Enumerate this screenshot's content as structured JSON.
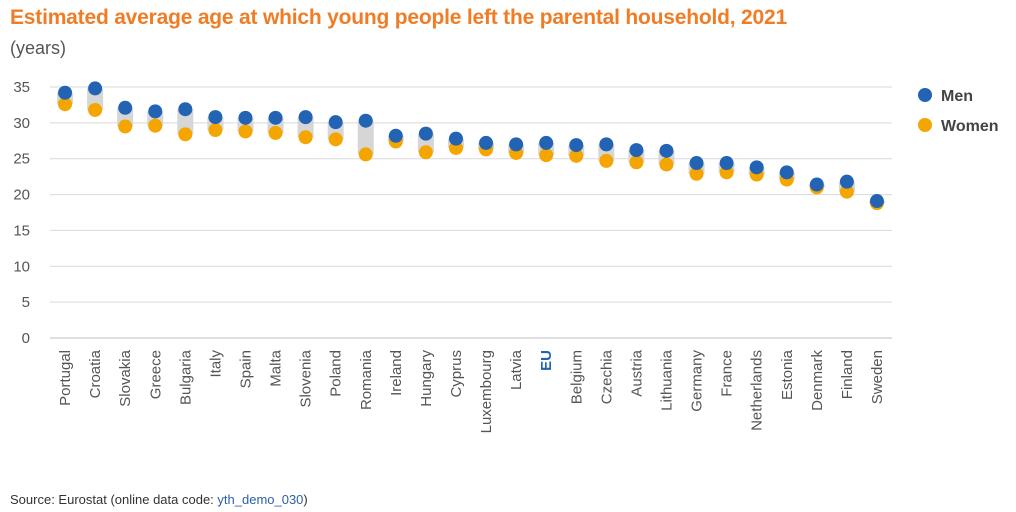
{
  "title": "Estimated average age at which young people left the parental household, 2021",
  "subtitle": "(years)",
  "source": {
    "prefix": "Source: Eurostat (online data code: ",
    "code": "yth_demo_030",
    "suffix": ")"
  },
  "colors": {
    "men": "#2263b4",
    "women": "#f5a500",
    "highlight_label": "#2263b4",
    "range_bar": "#d6d6d6",
    "grid": "#d9d9d9"
  },
  "chart_data": {
    "type": "scatter",
    "title": "Estimated average age at which young people left the parental household, 2021",
    "subtitle": "(years)",
    "xlabel": "",
    "ylabel": "",
    "ylim": [
      0,
      35
    ],
    "yticks": [
      0,
      5,
      10,
      15,
      20,
      25,
      30,
      35
    ],
    "grid": true,
    "legend_position": "right",
    "highlight_category": "EU",
    "categories": [
      "Portugal",
      "Croatia",
      "Slovakia",
      "Greece",
      "Bulgaria",
      "Italy",
      "Spain",
      "Malta",
      "Slovenia",
      "Poland",
      "Romania",
      "Ireland",
      "Hungary",
      "Cyprus",
      "Luxembourg",
      "Latvia",
      "EU",
      "Belgium",
      "Czechia",
      "Austria",
      "Lithuania",
      "Germany",
      "France",
      "Netherlands",
      "Estonia",
      "Denmark",
      "Finland",
      "Sweden"
    ],
    "series": [
      {
        "name": "Men",
        "values": [
          34.2,
          34.8,
          32.1,
          31.6,
          31.9,
          30.8,
          30.7,
          30.7,
          30.8,
          30.1,
          30.3,
          28.2,
          28.5,
          27.8,
          27.2,
          27.0,
          27.2,
          26.9,
          27.0,
          26.2,
          26.1,
          24.4,
          24.4,
          23.8,
          23.1,
          21.4,
          21.8,
          19.1
        ]
      },
      {
        "name": "Women",
        "values": [
          32.6,
          31.8,
          29.5,
          29.6,
          28.4,
          29.0,
          28.8,
          28.6,
          28.0,
          27.7,
          25.6,
          27.4,
          25.9,
          26.5,
          26.3,
          25.8,
          25.5,
          25.4,
          24.7,
          24.5,
          24.2,
          22.9,
          23.1,
          22.8,
          22.1,
          21.0,
          20.4,
          18.8
        ]
      }
    ]
  }
}
